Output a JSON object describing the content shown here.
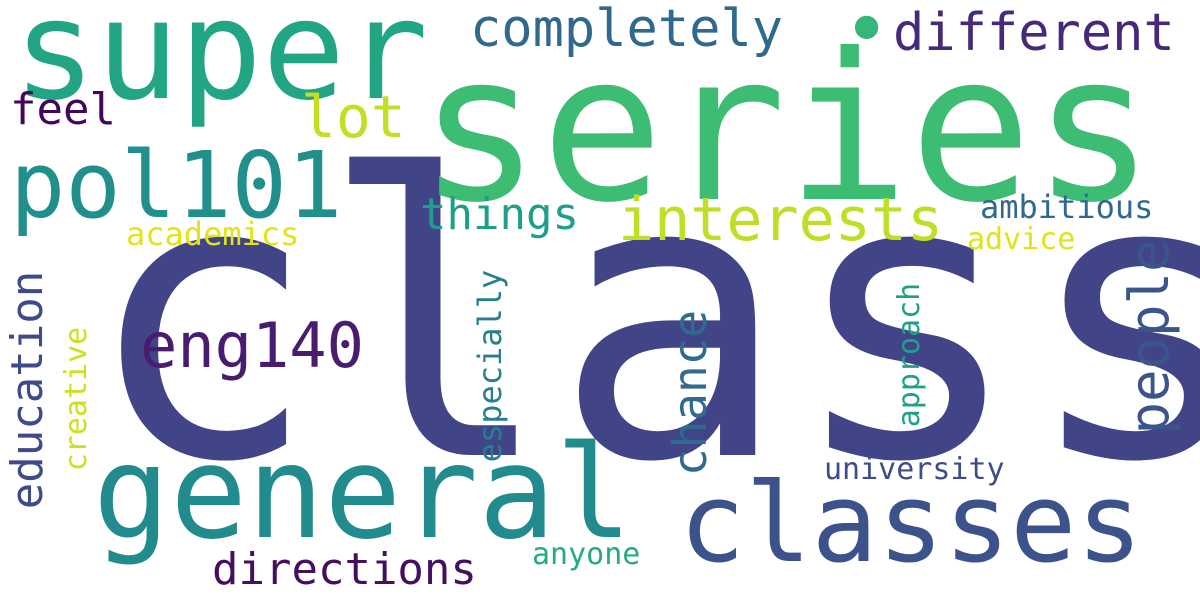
{
  "words": {
    "class": "class",
    "series": "series",
    "super": "super",
    "general": "general",
    "classes": "classes",
    "pol101": "pol101",
    "eng140": "eng140",
    "interests": "interests",
    "completely": "completely",
    "different": "different",
    "lot": "lot",
    "people": "people",
    "things": "things",
    "education": "education",
    "directions": "directions",
    "chance": "chance",
    "feel": "feel",
    "ambitious": "ambitious",
    "academics": "academics",
    "advice": "advice",
    "especially": "especially",
    "approach": "approach",
    "university": "university",
    "creative": "creative",
    "anyone": "anyone",
    "dot": "•"
  },
  "colors": {
    "class": "#414487",
    "series": "#3dbc74",
    "super": "#21a585",
    "general": "#228b8d",
    "classes": "#3b528b",
    "pol101": "#21908d",
    "eng140": "#481d6f",
    "interests": "#bddf26",
    "completely": "#31688e",
    "different": "#482878",
    "lot": "#c2df23",
    "people": "#3a548c",
    "things": "#1f9e89",
    "education": "#3e4a89",
    "directions": "#440f5f",
    "chance": "#306a8e",
    "feel": "#44065a",
    "ambitious": "#31688e",
    "academics": "#e2e418",
    "advice": "#dfe318",
    "especially": "#277f8e",
    "approach": "#1fa188",
    "university": "#3e4c8a",
    "creative": "#cce11e",
    "anyone": "#25ab82",
    "dot": "#35b779"
  }
}
